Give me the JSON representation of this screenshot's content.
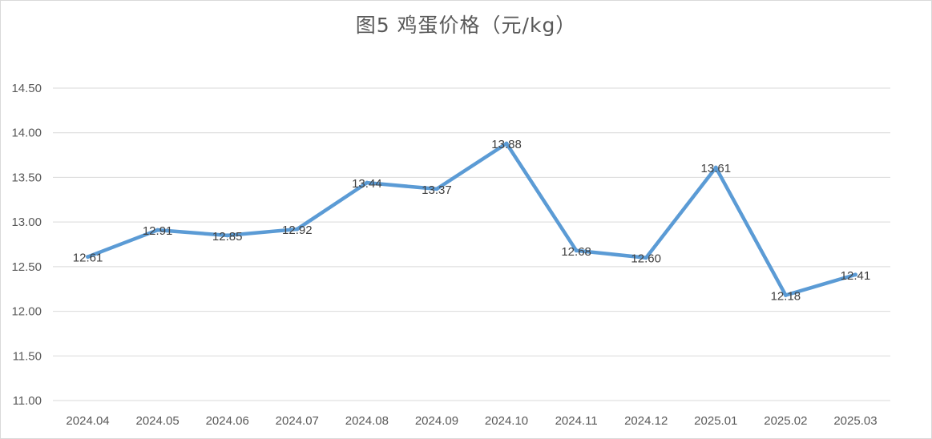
{
  "chart_data": {
    "type": "line",
    "title": "图5  鸡蛋价格（元/kg）",
    "categories": [
      "2024.04",
      "2024.05",
      "2024.06",
      "2024.07",
      "2024.08",
      "2024.09",
      "2024.10",
      "2024.11",
      "2024.12",
      "2025.01",
      "2025.02",
      "2025.03"
    ],
    "series": [
      {
        "values": [
          12.61,
          12.91,
          12.85,
          12.92,
          13.44,
          13.37,
          13.88,
          12.68,
          12.6,
          13.61,
          12.18,
          12.41
        ],
        "labels": [
          "12.61",
          "12.91",
          "12.85",
          "12.92",
          "13.44",
          "13.37",
          "13.88",
          "12.68",
          "12.60",
          "13.61",
          "12.18",
          "12.41"
        ],
        "color": "#5b9bd5"
      }
    ],
    "yticks": [
      "11.00",
      "11.50",
      "12.00",
      "12.50",
      "13.00",
      "13.50",
      "14.00",
      "14.50"
    ],
    "ylim": [
      11.0,
      14.5
    ],
    "xlabel": "",
    "ylabel": "",
    "grid": true,
    "legend": "none",
    "gridColor": "#d9d9d9"
  }
}
